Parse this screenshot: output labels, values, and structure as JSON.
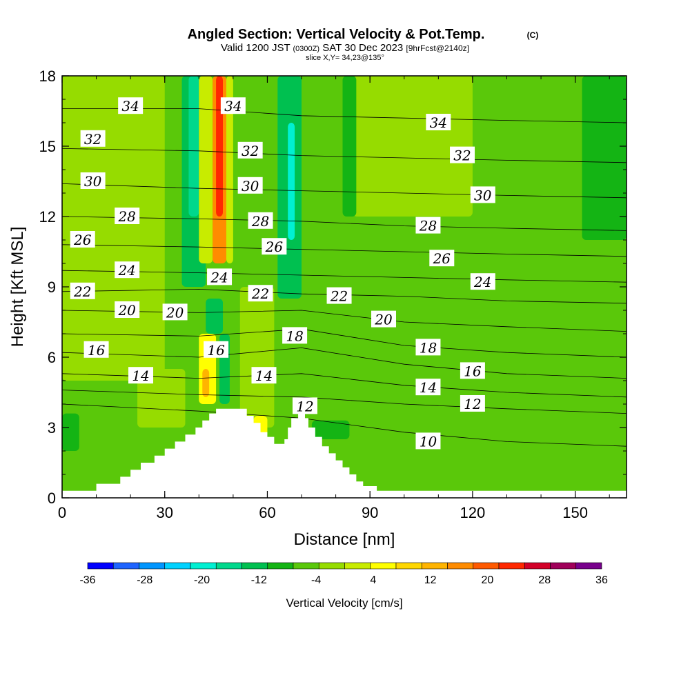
{
  "chart_data": {
    "type": "heatmap",
    "title": "Angled Section: Vertical Velocity & Pot.Temp.",
    "title_mark": "(C)",
    "subtitle": {
      "valid": "Valid 1200 JST",
      "utc": "(0300Z)",
      "date": "SAT 30 Dec 2023",
      "forecast": "[9hrFcst@2140z]"
    },
    "slice_label": "slice X,Y= 34,23@135°",
    "xlabel": "Distance [nm]",
    "ylabel": "Height [Kft MSL]",
    "xlim": [
      0,
      165
    ],
    "ylim": [
      0,
      18
    ],
    "x_ticks": [
      "0",
      "30",
      "60",
      "90",
      "120",
      "150"
    ],
    "y_ticks": [
      "0",
      "3",
      "6",
      "9",
      "12",
      "15",
      "18"
    ],
    "terrain_top_kft": [
      [
        0,
        0.3
      ],
      [
        10,
        0.6
      ],
      [
        17,
        0.9
      ],
      [
        20,
        1.2
      ],
      [
        23,
        1.5
      ],
      [
        27,
        1.8
      ],
      [
        30,
        2.1
      ],
      [
        33,
        2.4
      ],
      [
        36,
        2.7
      ],
      [
        39,
        3.0
      ],
      [
        41,
        3.3
      ],
      [
        43,
        3.6
      ],
      [
        45,
        3.8
      ],
      [
        52,
        3.8
      ],
      [
        54,
        3.5
      ],
      [
        56,
        3.2
      ],
      [
        58,
        2.8
      ],
      [
        60,
        2.6
      ],
      [
        62,
        2.3
      ],
      [
        65,
        2.5
      ],
      [
        66,
        3.0
      ],
      [
        67,
        3.4
      ],
      [
        69,
        3.6
      ],
      [
        71,
        3.4
      ],
      [
        72,
        3.0
      ],
      [
        74,
        2.6
      ],
      [
        76,
        2.2
      ],
      [
        78,
        1.9
      ],
      [
        80,
        1.6
      ],
      [
        82,
        1.3
      ],
      [
        84,
        1.0
      ],
      [
        86,
        0.7
      ],
      [
        88,
        0.5
      ],
      [
        92,
        0.3
      ],
      [
        165,
        0.3
      ]
    ],
    "isentropes": [
      {
        "label": "10",
        "points": [
          [
            0,
            4.0
          ],
          [
            40,
            3.7
          ],
          [
            70,
            3.4
          ],
          [
            100,
            2.8
          ],
          [
            130,
            2.4
          ],
          [
            165,
            2.2
          ]
        ]
      },
      {
        "label": "12",
        "points": [
          [
            0,
            4.6
          ],
          [
            40,
            4.4
          ],
          [
            70,
            4.3
          ],
          [
            100,
            4.0
          ],
          [
            130,
            3.8
          ],
          [
            165,
            3.6
          ]
        ]
      },
      {
        "label": "14",
        "points": [
          [
            0,
            5.3
          ],
          [
            40,
            5.1
          ],
          [
            70,
            5.3
          ],
          [
            100,
            4.8
          ],
          [
            130,
            4.5
          ],
          [
            165,
            4.3
          ]
        ]
      },
      {
        "label": "16",
        "points": [
          [
            0,
            6.2
          ],
          [
            40,
            6.0
          ],
          [
            70,
            6.4
          ],
          [
            100,
            5.7
          ],
          [
            130,
            5.3
          ],
          [
            165,
            5.1
          ]
        ]
      },
      {
        "label": "18",
        "points": [
          [
            0,
            7.0
          ],
          [
            40,
            6.9
          ],
          [
            70,
            7.2
          ],
          [
            100,
            6.5
          ],
          [
            130,
            6.2
          ],
          [
            165,
            6.0
          ]
        ]
      },
      {
        "label": "20",
        "points": [
          [
            0,
            8.0
          ],
          [
            40,
            7.9
          ],
          [
            70,
            8.0
          ],
          [
            100,
            7.5
          ],
          [
            130,
            7.3
          ],
          [
            165,
            7.1
          ]
        ]
      },
      {
        "label": "22",
        "points": [
          [
            0,
            8.8
          ],
          [
            40,
            8.9
          ],
          [
            70,
            8.7
          ],
          [
            100,
            8.6
          ],
          [
            130,
            8.4
          ],
          [
            165,
            8.3
          ]
        ]
      },
      {
        "label": "24",
        "points": [
          [
            0,
            9.7
          ],
          [
            40,
            9.6
          ],
          [
            70,
            9.5
          ],
          [
            100,
            9.4
          ],
          [
            130,
            9.3
          ],
          [
            165,
            9.2
          ]
        ]
      },
      {
        "label": "26",
        "points": [
          [
            0,
            10.8
          ],
          [
            40,
            10.7
          ],
          [
            70,
            10.6
          ],
          [
            100,
            10.5
          ],
          [
            130,
            10.4
          ],
          [
            165,
            10.3
          ]
        ]
      },
      {
        "label": "28",
        "points": [
          [
            0,
            12.0
          ],
          [
            40,
            11.9
          ],
          [
            70,
            11.8
          ],
          [
            100,
            11.6
          ],
          [
            130,
            11.5
          ],
          [
            165,
            11.4
          ]
        ]
      },
      {
        "label": "30",
        "points": [
          [
            0,
            13.4
          ],
          [
            40,
            13.2
          ],
          [
            70,
            13.1
          ],
          [
            100,
            13.0
          ],
          [
            130,
            12.9
          ],
          [
            165,
            12.8
          ]
        ]
      },
      {
        "label": "32",
        "points": [
          [
            0,
            14.9
          ],
          [
            40,
            14.8
          ],
          [
            70,
            14.6
          ],
          [
            100,
            14.5
          ],
          [
            130,
            14.4
          ],
          [
            165,
            14.3
          ]
        ]
      },
      {
        "label": "34",
        "points": [
          [
            0,
            16.6
          ],
          [
            40,
            16.6
          ],
          [
            70,
            16.3
          ],
          [
            100,
            16.2
          ],
          [
            130,
            16.1
          ],
          [
            165,
            16.0
          ]
        ]
      }
    ],
    "contour_labels": [
      {
        "text": "34",
        "x": 20,
        "y": 16.7
      },
      {
        "text": "34",
        "x": 50,
        "y": 16.7
      },
      {
        "text": "34",
        "x": 110,
        "y": 16.0
      },
      {
        "text": "32",
        "x": 9,
        "y": 15.3
      },
      {
        "text": "32",
        "x": 55,
        "y": 14.8
      },
      {
        "text": "32",
        "x": 117,
        "y": 14.6
      },
      {
        "text": "30",
        "x": 9,
        "y": 13.5
      },
      {
        "text": "30",
        "x": 55,
        "y": 13.3
      },
      {
        "text": "30",
        "x": 123,
        "y": 12.9
      },
      {
        "text": "28",
        "x": 19,
        "y": 12.0
      },
      {
        "text": "28",
        "x": 58,
        "y": 11.8
      },
      {
        "text": "28",
        "x": 107,
        "y": 11.6
      },
      {
        "text": "26",
        "x": 6,
        "y": 11.0
      },
      {
        "text": "26",
        "x": 62,
        "y": 10.7
      },
      {
        "text": "26",
        "x": 111,
        "y": 10.2
      },
      {
        "text": "24",
        "x": 19,
        "y": 9.7
      },
      {
        "text": "24",
        "x": 46,
        "y": 9.4
      },
      {
        "text": "24",
        "x": 123,
        "y": 9.2
      },
      {
        "text": "22",
        "x": 6,
        "y": 8.8
      },
      {
        "text": "22",
        "x": 58,
        "y": 8.7
      },
      {
        "text": "22",
        "x": 81,
        "y": 8.6
      },
      {
        "text": "20",
        "x": 19,
        "y": 8.0
      },
      {
        "text": "20",
        "x": 33,
        "y": 7.9
      },
      {
        "text": "20",
        "x": 94,
        "y": 7.6
      },
      {
        "text": "18",
        "x": 68,
        "y": 6.9
      },
      {
        "text": "18",
        "x": 107,
        "y": 6.4
      },
      {
        "text": "16",
        "x": 10,
        "y": 6.3
      },
      {
        "text": "16",
        "x": 45,
        "y": 6.3
      },
      {
        "text": "16",
        "x": 120,
        "y": 5.4
      },
      {
        "text": "14",
        "x": 23,
        "y": 5.2
      },
      {
        "text": "14",
        "x": 59,
        "y": 5.2
      },
      {
        "text": "14",
        "x": 107,
        "y": 4.7
      },
      {
        "text": "12",
        "x": 71,
        "y": 3.9
      },
      {
        "text": "12",
        "x": 120,
        "y": 4.0
      },
      {
        "text": "10",
        "x": 107,
        "y": 2.4
      }
    ],
    "velocity_bands": [
      {
        "x0": 0,
        "x1": 165,
        "y0": 0,
        "y1": 18,
        "w": -2
      },
      {
        "x0": 0,
        "x1": 30,
        "y0": 5,
        "y1": 18,
        "w": 2
      },
      {
        "x0": 22,
        "x1": 36,
        "y0": 3,
        "y1": 5.5,
        "w": 2
      },
      {
        "x0": 85,
        "x1": 120,
        "y0": 12,
        "y1": 18,
        "w": 2
      },
      {
        "x0": 52,
        "x1": 62,
        "y0": 3,
        "y1": 9,
        "w": 2
      },
      {
        "x0": 35,
        "x1": 42,
        "y0": 9,
        "y1": 18,
        "w": -10
      },
      {
        "x0": 37,
        "x1": 40,
        "y0": 12,
        "y1": 18,
        "w": -16
      },
      {
        "x0": 40,
        "x1": 44,
        "y0": 10,
        "y1": 18,
        "w": 6
      },
      {
        "x0": 44,
        "x1": 48,
        "y0": 10,
        "y1": 18,
        "w": 20
      },
      {
        "x0": 45,
        "x1": 47,
        "y0": 12,
        "y1": 18,
        "w": 30
      },
      {
        "x0": 48,
        "x1": 50,
        "y0": 10,
        "y1": 18,
        "w": 6
      },
      {
        "x0": 63,
        "x1": 70,
        "y0": 8.5,
        "y1": 18,
        "w": -12
      },
      {
        "x0": 66,
        "x1": 68,
        "y0": 11,
        "y1": 16,
        "w": -18
      },
      {
        "x0": 82,
        "x1": 86,
        "y0": 12,
        "y1": 18,
        "w": -8
      },
      {
        "x0": 152,
        "x1": 165,
        "y0": 11,
        "y1": 18,
        "w": -8
      },
      {
        "x0": 40,
        "x1": 45,
        "y0": 4,
        "y1": 7,
        "w": 10
      },
      {
        "x0": 41,
        "x1": 43,
        "y0": 4.3,
        "y1": 5.5,
        "w": 18
      },
      {
        "x0": 42,
        "x1": 47,
        "y0": 7,
        "y1": 8.5,
        "w": -12
      },
      {
        "x0": 46,
        "x1": 49,
        "y0": 4,
        "y1": 7,
        "w": -10
      },
      {
        "x0": 56,
        "x1": 60,
        "y0": 2.6,
        "y1": 3.5,
        "w": 8
      },
      {
        "x0": 73,
        "x1": 84,
        "y0": 2.5,
        "y1": 3.3,
        "w": -6
      },
      {
        "x0": 0,
        "x1": 5,
        "y0": 2,
        "y1": 3.6,
        "w": -6
      }
    ],
    "colorbar": {
      "label": "Vertical Velocity [cm/s]",
      "min": -36,
      "max": 36,
      "step": 4,
      "tick_labels": [
        "-36",
        "-28",
        "-20",
        "-12",
        "-4",
        "4",
        "12",
        "20",
        "28",
        "36"
      ],
      "colors": [
        "#0000ff",
        "#1e64ff",
        "#0096ff",
        "#00d2ff",
        "#00f0d2",
        "#00d88c",
        "#00c050",
        "#14b414",
        "#5ac80a",
        "#96dc00",
        "#c8ec00",
        "#ffff00",
        "#ffd700",
        "#ffb400",
        "#ff8c00",
        "#ff5a00",
        "#ff2800",
        "#d20028",
        "#a0005a",
        "#78008c"
      ]
    }
  }
}
